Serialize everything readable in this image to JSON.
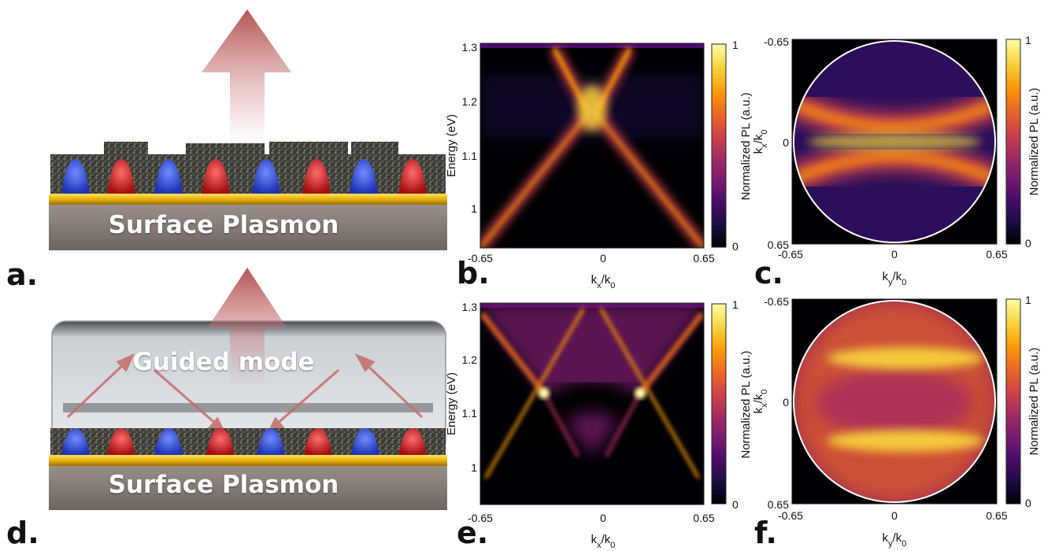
{
  "panels": {
    "a": {
      "letter": "a.",
      "label": "Surface Plasmon"
    },
    "d": {
      "letter": "d.",
      "label_top": "Guided mode",
      "label": "Surface Plasmon"
    },
    "b": {
      "letter": "b."
    },
    "c": {
      "letter": "c."
    },
    "e": {
      "letter": "e."
    },
    "f": {
      "letter": "f."
    }
  },
  "colors": {
    "colormap": [
      "#000004",
      "#1b0c41",
      "#4a0c6b",
      "#781c6d",
      "#a52c60",
      "#cf4446",
      "#ed6925",
      "#fb9b06",
      "#f7d13d",
      "#fcffa4"
    ],
    "gold": "#e8b20a",
    "substrate": "#8a7e78",
    "dot_blue": "#2e4fd8",
    "dot_red": "#d42020",
    "arrow": "#c87070"
  },
  "chart_data": [
    {
      "id": "b",
      "type": "heatmap",
      "xlabel": "k_x/k_0",
      "ylabel": "Energy (eV)",
      "xlim": [
        -0.65,
        0.65
      ],
      "ylim": [
        0.93,
        1.31
      ],
      "xticks": [
        "-0.65",
        "0",
        "0.65"
      ],
      "yticks": [
        "1",
        "1.1",
        "1.2",
        "1.3"
      ],
      "colorbar": {
        "label": "Normalized PL (a.u.)",
        "ticks": [
          "0",
          "1"
        ]
      },
      "features": [
        {
          "kind": "dispersion-branch",
          "from": [
            -0.65,
            0.93
          ],
          "to": [
            -0.02,
            1.18
          ]
        },
        {
          "kind": "dispersion-branch",
          "from": [
            0.65,
            0.93
          ],
          "to": [
            0.02,
            1.18
          ]
        },
        {
          "kind": "dispersion-branch",
          "from": [
            -0.02,
            1.18
          ],
          "to": [
            -0.22,
            1.3
          ]
        },
        {
          "kind": "dispersion-branch",
          "from": [
            0.02,
            1.18
          ],
          "to": [
            0.22,
            1.3
          ]
        }
      ]
    },
    {
      "id": "c",
      "type": "heatmap",
      "xlabel": "k_y/k_0",
      "ylabel": "k_x/k_0",
      "xlim": [
        -0.65,
        0.65
      ],
      "ylim": [
        0.65,
        -0.65
      ],
      "xticks": [
        "-0.65",
        "0",
        "0.65"
      ],
      "yticks": [
        "-0.65",
        "0",
        "0.65"
      ],
      "colorbar": {
        "label": "Normalized PL (a.u.)",
        "ticks": [
          "0",
          "1"
        ]
      }
    },
    {
      "id": "e",
      "type": "heatmap",
      "xlabel": "k_x/k_0",
      "ylabel": "Energy (eV)",
      "xlim": [
        -0.65,
        0.65
      ],
      "ylim": [
        0.93,
        1.31
      ],
      "xticks": [
        "-0.65",
        "0",
        "0.65"
      ],
      "yticks": [
        "1",
        "1.1",
        "1.2",
        "1.3"
      ],
      "colorbar": {
        "label": "Normalized PL (a.u.)",
        "ticks": [
          "0",
          "1"
        ]
      },
      "features": [
        {
          "kind": "anticrossing",
          "k": -0.28,
          "energy": 1.14
        },
        {
          "kind": "anticrossing",
          "k": 0.28,
          "energy": 1.14
        }
      ]
    },
    {
      "id": "f",
      "type": "heatmap",
      "xlabel": "k_y/k_0",
      "ylabel": "k_x/k_0",
      "xlim": [
        -0.65,
        0.65
      ],
      "ylim": [
        0.65,
        -0.65
      ],
      "xticks": [
        "-0.65",
        "0",
        "0.65"
      ],
      "yticks": [
        "-0.65",
        "0",
        "0.65"
      ],
      "colorbar": {
        "label": "Normalized PL (a.u.)",
        "ticks": [
          "0",
          "1"
        ]
      }
    }
  ]
}
